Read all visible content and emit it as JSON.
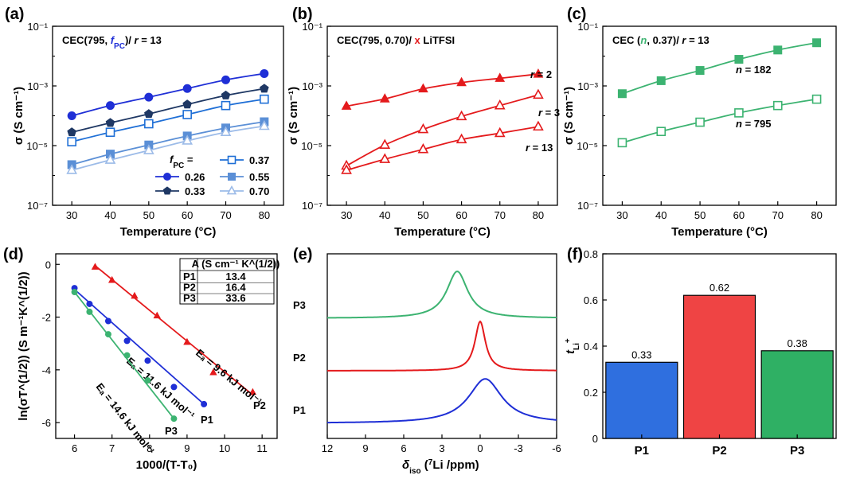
{
  "chart_data": [
    {
      "panel": "(a)",
      "type": "line",
      "title_parts": [
        "CEC(795, ",
        "f",
        "PC",
        ")/ ",
        "r",
        " = 13"
      ],
      "xlabel": "Temperature (°C)",
      "ylabel": "σ (S cm⁻¹)",
      "x": [
        30,
        40,
        50,
        60,
        70,
        80
      ],
      "xticks": [
        "30",
        "40",
        "50",
        "60",
        "70",
        "80"
      ],
      "xlim": [
        25,
        85
      ],
      "yscale": "log",
      "ylim": [
        1e-07,
        0.1
      ],
      "yticks": [
        "10⁻⁷",
        "10⁻⁵",
        "10⁻³",
        "10⁻¹"
      ],
      "legend_title": "f",
      "legend_title_sub": "PC",
      "legend_title_suffix": " =",
      "series": [
        {
          "name": "0.26",
          "color": "#1f2fd6",
          "marker": "circle",
          "values": [
            0.0001,
            0.00022,
            0.00042,
            0.00082,
            0.0016,
            0.0026
          ]
        },
        {
          "name": "0.37",
          "color": "#1f6fd6",
          "marker": "square-open",
          "values": [
            1.35e-05,
            2.8e-05,
            5.4e-05,
            0.00011,
            0.00022,
            0.00036
          ]
        },
        {
          "name": "0.33",
          "color": "#1f3864",
          "marker": "pentagon",
          "values": [
            2.8e-05,
            5.8e-05,
            0.000115,
            0.00024,
            0.00048,
            0.00081
          ]
        },
        {
          "name": "0.55",
          "color": "#5b8fd6",
          "marker": "square",
          "values": [
            2.3e-06,
            5.2e-06,
            1.05e-05,
            2.1e-05,
            3.9e-05,
            6.3e-05
          ]
        },
        {
          "name": "0.70",
          "color": "#9cbbe8",
          "marker": "triangle-open",
          "values": [
            1.5e-06,
            3.3e-06,
            6.9e-06,
            1.45e-05,
            2.8e-05,
            4.5e-05
          ]
        }
      ]
    },
    {
      "panel": "(b)",
      "type": "line",
      "title_parts": [
        "CEC(795, 0.70)/ ",
        "x",
        " LiTFSI"
      ],
      "xlabel": "Temperature (°C)",
      "ylabel": "σ (S cm⁻¹)",
      "x": [
        30,
        40,
        50,
        60,
        70,
        80
      ],
      "xticks": [
        "30",
        "40",
        "50",
        "60",
        "70",
        "80"
      ],
      "xlim": [
        25,
        85
      ],
      "yscale": "log",
      "ylim": [
        1e-07,
        0.1
      ],
      "yticks": [
        "10⁻⁷",
        "10⁻⁵",
        "10⁻³",
        "10⁻¹"
      ],
      "series": [
        {
          "name": "r = 2",
          "label_r": "r",
          "label_v": " = 2",
          "color": "#e41a1c",
          "marker": "triangle",
          "values": [
            0.00021,
            0.00037,
            0.0008,
            0.0013,
            0.0018,
            0.0025
          ]
        },
        {
          "name": "r = 3",
          "label_r": "r",
          "label_v": " = 3",
          "color": "#e41a1c",
          "marker": "triangle-open",
          "values": [
            2.1e-06,
            1.05e-05,
            3.5e-05,
            9.5e-05,
            0.00022,
            0.0005
          ]
        },
        {
          "name": "r = 13",
          "label_r": "r",
          "label_v": " = 13",
          "color": "#e41a1c",
          "marker": "triangle-open",
          "values": [
            1.5e-06,
            3.5e-06,
            7.5e-06,
            1.6e-05,
            2.6e-05,
            4.3e-05
          ]
        }
      ]
    },
    {
      "panel": "(c)",
      "type": "line",
      "title_parts": [
        "CEC (",
        "n",
        ", 0.37)/ ",
        "r",
        " = 13"
      ],
      "xlabel": "Temperature (°C)",
      "ylabel": "σ (S cm⁻¹)",
      "x": [
        30,
        40,
        50,
        60,
        70,
        80
      ],
      "xticks": [
        "30",
        "40",
        "50",
        "60",
        "70",
        "80"
      ],
      "xlim": [
        25,
        85
      ],
      "yscale": "log",
      "ylim": [
        1e-07,
        0.1
      ],
      "yticks": [
        "10⁻⁷",
        "10⁻⁵",
        "10⁻³",
        "10⁻¹"
      ],
      "series": [
        {
          "name": "n = 182",
          "label_r": "n",
          "label_v": " = 182",
          "color": "#3cb371",
          "marker": "square",
          "values": [
            0.00055,
            0.0015,
            0.0033,
            0.0078,
            0.016,
            0.028
          ]
        },
        {
          "name": "n = 795",
          "label_r": "n",
          "label_v": " = 795",
          "color": "#3cb371",
          "marker": "square-open",
          "values": [
            1.25e-05,
            2.98e-05,
            6.1e-05,
            0.000125,
            0.00022,
            0.00036
          ]
        }
      ]
    },
    {
      "panel": "(d)",
      "type": "scatter",
      "xlabel": "1000/(T-T₀)",
      "ylabel": "ln(σT^(1/2)) (S m⁻¹K^(1/2))",
      "xlim": [
        5.5,
        11.4
      ],
      "ylim": [
        -6.6,
        0.4
      ],
      "xticks": [
        6,
        7,
        8,
        9,
        10,
        11
      ],
      "yticks": [
        0,
        -2,
        -4,
        -6
      ],
      "ytick_labels": [
        "0",
        "-2",
        "-4",
        "-6"
      ],
      "table": {
        "header": "A (S cm⁻¹ K^(1/2))",
        "rows": [
          [
            "P1",
            "13.4"
          ],
          [
            "P2",
            "16.4"
          ],
          [
            "P3",
            "33.6"
          ]
        ]
      },
      "series": [
        {
          "name": "P1",
          "color": "#1f2fd6",
          "marker": "circle",
          "x": [
            6.0,
            6.4,
            6.9,
            7.4,
            7.95,
            8.65,
            9.45
          ],
          "y": [
            -0.9,
            -1.5,
            -2.15,
            -2.9,
            -3.65,
            -4.65,
            -5.3
          ],
          "fit": [
            [
              6.0,
              -0.95
            ],
            [
              9.45,
              -5.3
            ]
          ],
          "ea": "Eₐ = 11.6 kJ mol⁻¹"
        },
        {
          "name": "P2",
          "color": "#e41a1c",
          "marker": "triangle",
          "x": [
            6.55,
            7.0,
            7.6,
            8.2,
            9.0,
            9.7,
            10.75
          ],
          "y": [
            -0.1,
            -0.6,
            -1.2,
            -1.95,
            -2.95,
            -4.1,
            -4.85
          ],
          "fit": [
            [
              6.55,
              -0.05
            ],
            [
              10.75,
              -4.95
            ]
          ],
          "ea": "Eₐ = 9.6 kJ mol⁻¹"
        },
        {
          "name": "P3",
          "color": "#3cb371",
          "marker": "circle",
          "x": [
            6.0,
            6.4,
            6.9,
            7.4,
            7.95,
            8.65
          ],
          "y": [
            -1.05,
            -1.8,
            -2.65,
            -3.45,
            -4.4,
            -5.85
          ],
          "fit": [
            [
              6.0,
              -1.05
            ],
            [
              8.65,
              -5.85
            ]
          ],
          "ea": "Eₐ = 14.6 kJ mol⁻¹"
        }
      ]
    },
    {
      "panel": "(e)",
      "type": "line",
      "xlabel": "δiso (⁷Li /ppm)",
      "xlabel_parts": [
        "δ",
        "iso",
        " (",
        "7",
        "Li /ppm)"
      ],
      "xlim": [
        12,
        -6
      ],
      "xticks": [
        12,
        9,
        6,
        3,
        0,
        -3,
        -6
      ],
      "series": [
        {
          "name": "P1",
          "color": "#1f2fd6",
          "peak_ppm": -0.4,
          "width_ppm": 1.6,
          "height": 0.9,
          "baseline": 0.0
        },
        {
          "name": "P2",
          "color": "#e41a1c",
          "peak_ppm": 0.0,
          "width_ppm": 0.5,
          "height": 1.0,
          "baseline": 1.0
        },
        {
          "name": "P3",
          "color": "#3cb371",
          "peak_ppm": 1.8,
          "width_ppm": 1.0,
          "height": 0.95,
          "baseline": 2.0
        }
      ]
    },
    {
      "panel": "(f)",
      "type": "bar",
      "categories": [
        "P1",
        "P2",
        "P3"
      ],
      "values": [
        0.33,
        0.62,
        0.38
      ],
      "value_labels": [
        "0.33",
        "0.62",
        "0.38"
      ],
      "colors": [
        "#2f6fdf",
        "#ef4444",
        "#2fb064"
      ],
      "ylabel": "t",
      "ylabel_sub": "Li",
      "ylabel_sup": "+",
      "ylim": [
        0,
        0.8
      ],
      "yticks": [
        "0",
        "0.2",
        "0.4",
        "0.6",
        "0.8"
      ]
    }
  ]
}
